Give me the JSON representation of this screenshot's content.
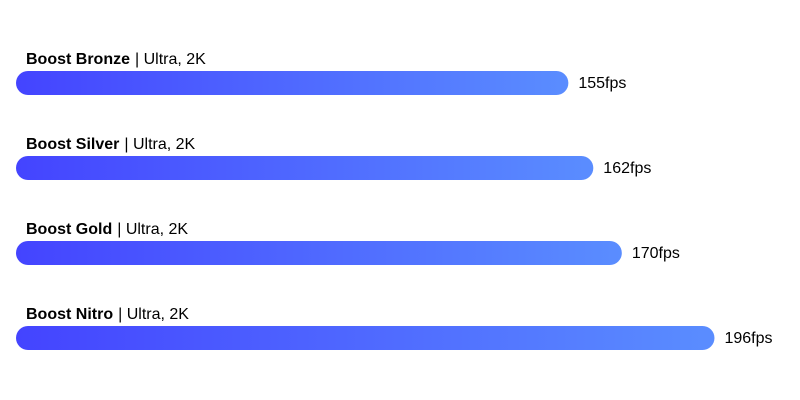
{
  "chart_data": {
    "type": "bar",
    "orientation": "horizontal",
    "categories": [
      "Boost Bronze",
      "Boost Silver",
      "Boost Gold",
      "Boost Nitro"
    ],
    "category_details": [
      "| Ultra, 2K",
      "| Ultra, 2K",
      "| Ultra, 2K",
      "| Ultra, 2K"
    ],
    "values": [
      155,
      162,
      170,
      196
    ],
    "value_labels": [
      "155fps",
      "162fps",
      "170fps",
      "196fps"
    ],
    "colors": [
      "#4444ff",
      "#5a8dff"
    ],
    "xlim": [
      0,
      220
    ]
  }
}
